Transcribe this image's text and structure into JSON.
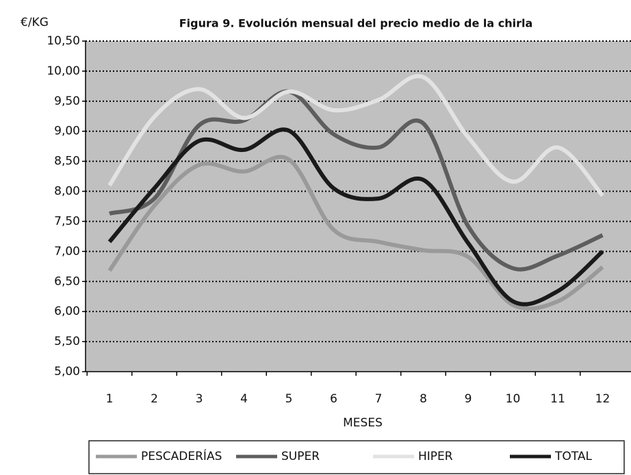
{
  "chart_data": {
    "type": "line",
    "title": "Figura 9. Evolución mensual del precio medio de la chirla",
    "y_label": "€/KG",
    "x_label": "MESES",
    "categories": [
      "1",
      "2",
      "3",
      "4",
      "5",
      "6",
      "7",
      "8",
      "9",
      "10",
      "11",
      "12"
    ],
    "series": [
      {
        "name": "PESCADERÍAS",
        "color": "#9a9a9a",
        "values": [
          6.68,
          7.76,
          8.44,
          8.33,
          8.53,
          7.36,
          7.16,
          7.02,
          6.91,
          6.11,
          6.17,
          6.74
        ]
      },
      {
        "name": "SUPER",
        "color": "#5e5e5e",
        "values": [
          7.63,
          7.88,
          9.1,
          9.18,
          9.66,
          8.95,
          8.73,
          9.13,
          7.42,
          6.72,
          6.93,
          7.27
        ]
      },
      {
        "name": "HIPER",
        "color": "#e2e2e2",
        "values": [
          8.1,
          9.24,
          9.7,
          9.22,
          9.66,
          9.35,
          9.52,
          9.9,
          8.9,
          8.16,
          8.73,
          7.93
        ]
      },
      {
        "name": "TOTAL",
        "color": "#1a1a1a",
        "values": [
          7.16,
          8.05,
          8.84,
          8.69,
          9.01,
          8.05,
          7.88,
          8.19,
          7.14,
          6.17,
          6.34,
          7.0
        ]
      }
    ],
    "ylim": [
      5,
      10.5
    ],
    "yticks": [
      {
        "value": 5,
        "label": "5,00"
      },
      {
        "value": 5.5,
        "label": "5,50"
      },
      {
        "value": 6,
        "label": "6,00"
      },
      {
        "value": 6.5,
        "label": "6,50"
      },
      {
        "value": 7,
        "label": "7,00"
      },
      {
        "value": 7.5,
        "label": "7,50"
      },
      {
        "value": 8,
        "label": "8,00"
      },
      {
        "value": 8.5,
        "label": "8,50"
      },
      {
        "value": 9,
        "label": "9,00"
      },
      {
        "value": 9.5,
        "label": "9,50"
      },
      {
        "value": 10,
        "label": "10,00"
      },
      {
        "value": 10.5,
        "label": "10,50"
      }
    ],
    "grid": true
  }
}
